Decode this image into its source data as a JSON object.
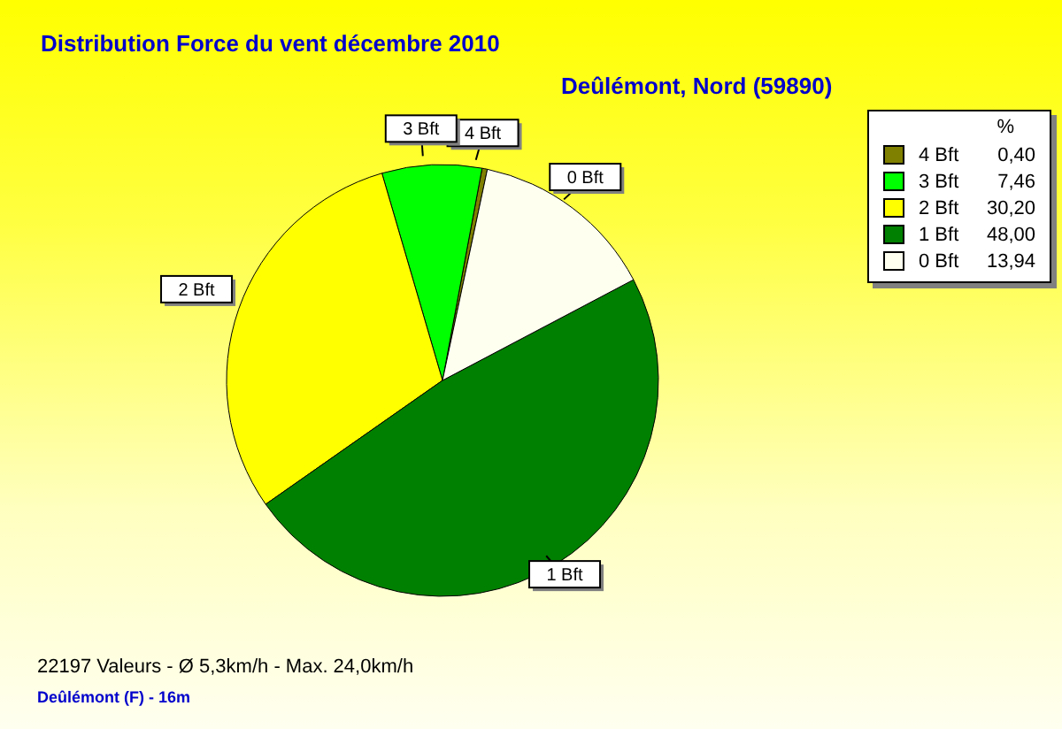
{
  "chart_data": {
    "type": "pie",
    "title": "Distribution Force du vent  décembre 2010",
    "subtitle": "Deûlémont, Nord (59890)",
    "legend_title": "%",
    "categories": [
      "4 Bft",
      "3 Bft",
      "2 Bft",
      "1 Bft",
      "0 Bft"
    ],
    "values": [
      0.4,
      7.46,
      30.2,
      48.0,
      13.94
    ],
    "value_labels": [
      "0,40",
      "7,46",
      "30,20",
      "48,00",
      "13,94"
    ],
    "colors": [
      "#808000",
      "#00ff00",
      "#ffff00",
      "#008000",
      "#fffff0"
    ],
    "legend": "top right",
    "annotations": [
      "22197 Valeurs   -   Ø 5,3km/h  -  Max. 24,0km/h",
      "Deûlémont (F) - 16m"
    ]
  }
}
